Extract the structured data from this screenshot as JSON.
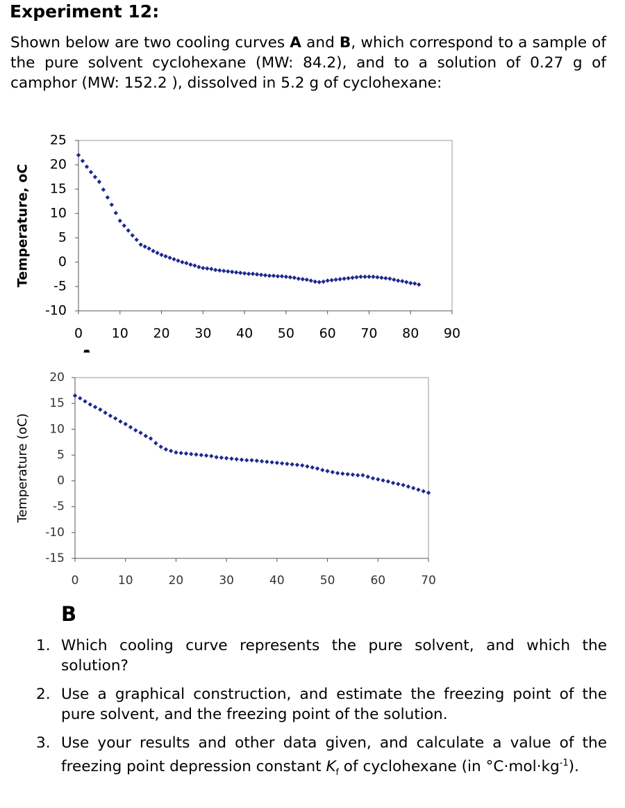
{
  "title": "Experiment 12:",
  "intro": [
    "Shown below are two cooling curves ",
    "A",
    " and ",
    "B",
    ", which correspond to a sample of the pure solvent cyclohexane (MW: 84.2), and to a solution of 0.27 g of camphor (MW: 152.2 ), dissolved in 5.2 g of cyclohexane:"
  ],
  "chart_data": [
    {
      "type": "scatter",
      "caption": "A",
      "y_label": "Temperature, oC",
      "color": "#1c2a8e",
      "marker": "diamond",
      "xlim": [
        0,
        90
      ],
      "ylim": [
        -10,
        25
      ],
      "xticks": [
        0,
        10,
        20,
        30,
        40,
        50,
        60,
        70,
        80,
        90
      ],
      "yticks": [
        -10,
        -5,
        0,
        5,
        10,
        15,
        20,
        25
      ],
      "x": [
        0,
        1,
        2,
        3,
        4,
        5,
        6,
        7,
        8,
        9,
        10,
        11,
        12,
        13,
        14,
        15,
        16,
        17,
        18,
        19,
        20,
        21,
        22,
        23,
        24,
        25,
        26,
        27,
        28,
        29,
        30,
        31,
        32,
        33,
        34,
        35,
        36,
        37,
        38,
        39,
        40,
        41,
        42,
        43,
        44,
        45,
        46,
        47,
        48,
        49,
        50,
        51,
        52,
        53,
        54,
        55,
        56,
        57,
        58,
        59,
        60,
        61,
        62,
        63,
        64,
        65,
        66,
        67,
        68,
        69,
        70,
        71,
        72,
        73,
        74,
        75,
        76,
        77,
        78,
        79,
        80,
        81,
        82
      ],
      "values": [
        22.0,
        20.8,
        19.6,
        18.5,
        17.5,
        16.5,
        14.9,
        13.3,
        11.8,
        10.1,
        8.5,
        7.5,
        6.5,
        5.5,
        4.6,
        3.6,
        3.2,
        2.8,
        2.3,
        1.9,
        1.5,
        1.2,
        0.9,
        0.6,
        0.3,
        0.0,
        -0.2,
        -0.5,
        -0.7,
        -1.0,
        -1.2,
        -1.3,
        -1.4,
        -1.6,
        -1.7,
        -1.8,
        -1.9,
        -2.0,
        -2.1,
        -2.2,
        -2.3,
        -2.4,
        -2.4,
        -2.5,
        -2.6,
        -2.7,
        -2.8,
        -2.8,
        -2.9,
        -2.9,
        -3.0,
        -3.1,
        -3.2,
        -3.4,
        -3.5,
        -3.6,
        -3.8,
        -4.0,
        -4.1,
        -4.0,
        -3.8,
        -3.7,
        -3.6,
        -3.5,
        -3.4,
        -3.3,
        -3.2,
        -3.1,
        -3.0,
        -3.0,
        -3.0,
        -3.0,
        -3.1,
        -3.2,
        -3.3,
        -3.4,
        -3.6,
        -3.8,
        -3.9,
        -4.1,
        -4.3,
        -4.4,
        -4.6
      ]
    },
    {
      "type": "scatter",
      "caption": "B",
      "y_label": "Temperature (oC)",
      "color": "#1c2a8e",
      "marker": "diamond",
      "xlim": [
        0,
        70
      ],
      "ylim": [
        -15,
        20
      ],
      "xticks": [
        0,
        10,
        20,
        30,
        40,
        50,
        60,
        70
      ],
      "yticks": [
        -15,
        -10,
        -5,
        0,
        5,
        10,
        15,
        20
      ],
      "x": [
        0,
        1,
        2,
        3,
        4,
        5,
        6,
        7,
        8,
        9,
        10,
        11,
        12,
        13,
        14,
        15,
        16,
        17,
        18,
        19,
        20,
        21,
        22,
        23,
        24,
        25,
        26,
        27,
        28,
        29,
        30,
        31,
        32,
        33,
        34,
        35,
        36,
        37,
        38,
        39,
        40,
        41,
        42,
        43,
        44,
        45,
        46,
        47,
        48,
        49,
        50,
        51,
        52,
        53,
        54,
        55,
        56,
        57,
        58,
        59,
        60,
        61,
        62,
        63,
        64,
        65,
        66,
        67,
        68,
        69,
        70
      ],
      "values": [
        16.5,
        16.0,
        15.4,
        14.8,
        14.3,
        13.8,
        13.2,
        12.6,
        12.1,
        11.5,
        11.0,
        10.4,
        9.8,
        9.3,
        8.7,
        8.2,
        7.3,
        6.6,
        6.1,
        5.8,
        5.5,
        5.4,
        5.3,
        5.2,
        5.1,
        5.0,
        4.9,
        4.8,
        4.6,
        4.5,
        4.4,
        4.3,
        4.2,
        4.1,
        4.0,
        4.0,
        3.9,
        3.8,
        3.7,
        3.6,
        3.5,
        3.4,
        3.3,
        3.2,
        3.1,
        3.0,
        2.8,
        2.6,
        2.4,
        2.1,
        1.9,
        1.7,
        1.5,
        1.4,
        1.3,
        1.2,
        1.1,
        1.1,
        0.8,
        0.5,
        0.3,
        0.1,
        -0.1,
        -0.4,
        -0.6,
        -0.8,
        -1.1,
        -1.4,
        -1.7,
        -2.0,
        -2.3
      ]
    }
  ],
  "questions": [
    [
      "Which cooling curve represents the pure solvent, and which the solution?"
    ],
    [
      "Use a graphical construction, and estimate the freezing point of the pure solvent, and the freezing point of the solution."
    ],
    [
      "Use your results and other data given, and calculate a value of the freezing point depression constant ",
      "K",
      "f",
      " of cyclohexane (in °C·mol·kg",
      "-1",
      ")."
    ]
  ]
}
